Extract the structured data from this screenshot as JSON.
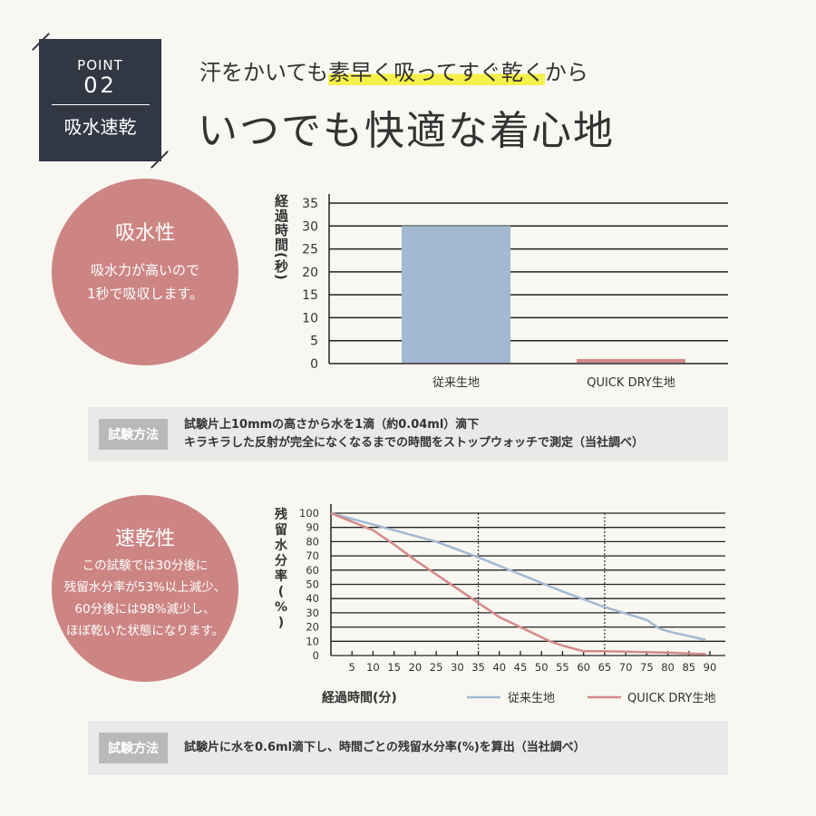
{
  "badge": {
    "point": "POINT",
    "number": "02",
    "label": "吸水速乾"
  },
  "header": {
    "sub_pre": "汗をかいても",
    "sub_hl": "素早く吸ってすぐ乾く",
    "sub_post": "から",
    "title": "いつでも快適な着心地"
  },
  "circle1": {
    "heading": "吸水性",
    "lines": [
      "吸水力が高いので",
      "1秒で吸収します。"
    ]
  },
  "circle2": {
    "heading": "速乾性",
    "lines": [
      "この試験では30分後に",
      "残留水分率が53%以上減少、",
      "60分後には98%減少し、",
      "ほぼ乾いた状態になります。"
    ]
  },
  "method1": {
    "label": "試験方法",
    "lines": [
      "試験片上10mmの高さから水を1滴（約0.04ml）滴下",
      "キラキラした反射が完全になくなるまでの時間をストップウォッチで測定（当社調べ）"
    ]
  },
  "method2": {
    "label": "試験方法",
    "lines": [
      "試験片に水を0.6ml滴下し、時間ごとの残留水分率(%)を算出（当社調べ）"
    ]
  },
  "colors": {
    "conventional": "#a3b9d2",
    "quickdry": "#d48a88",
    "circle": "#cc8583",
    "badge": "#323744",
    "highlight": "#f6f04a"
  },
  "chart_data": [
    {
      "type": "bar",
      "ylabel": "経過時間(秒)",
      "categories": [
        "従来生地",
        "QUICK DRY生地"
      ],
      "values": [
        30,
        1
      ],
      "ylim": [
        0,
        35
      ],
      "yticks": [
        0,
        5,
        10,
        15,
        20,
        25,
        30,
        35
      ],
      "grid": true
    },
    {
      "type": "line",
      "ylabel": "残留水分率(%)",
      "xlabel": "経過時間(分)",
      "xlim": [
        0,
        90
      ],
      "ylim": [
        0,
        100
      ],
      "xticks": [
        5,
        10,
        15,
        20,
        25,
        30,
        35,
        40,
        45,
        50,
        55,
        60,
        65,
        70,
        75,
        80,
        85,
        90
      ],
      "yticks": [
        0,
        10,
        20,
        30,
        40,
        50,
        60,
        70,
        80,
        90,
        100
      ],
      "grid": true,
      "vlines": [
        35,
        65
      ],
      "legend": "bottom-right",
      "series": [
        {
          "name": "従来生地",
          "x": [
            0,
            10,
            15,
            25,
            35,
            45,
            55,
            65,
            75,
            78,
            80,
            89
          ],
          "y": [
            100,
            92,
            88,
            80,
            69,
            57,
            45,
            34,
            25,
            19,
            17,
            11
          ]
        },
        {
          "name": "QUICK DRY生地",
          "x": [
            0,
            10,
            15,
            20,
            25,
            35,
            40,
            45,
            52,
            55,
            60,
            65,
            80,
            89
          ],
          "y": [
            100,
            88,
            78,
            67,
            57,
            37,
            27,
            20,
            10,
            7,
            3,
            3,
            2,
            1
          ]
        }
      ]
    }
  ]
}
